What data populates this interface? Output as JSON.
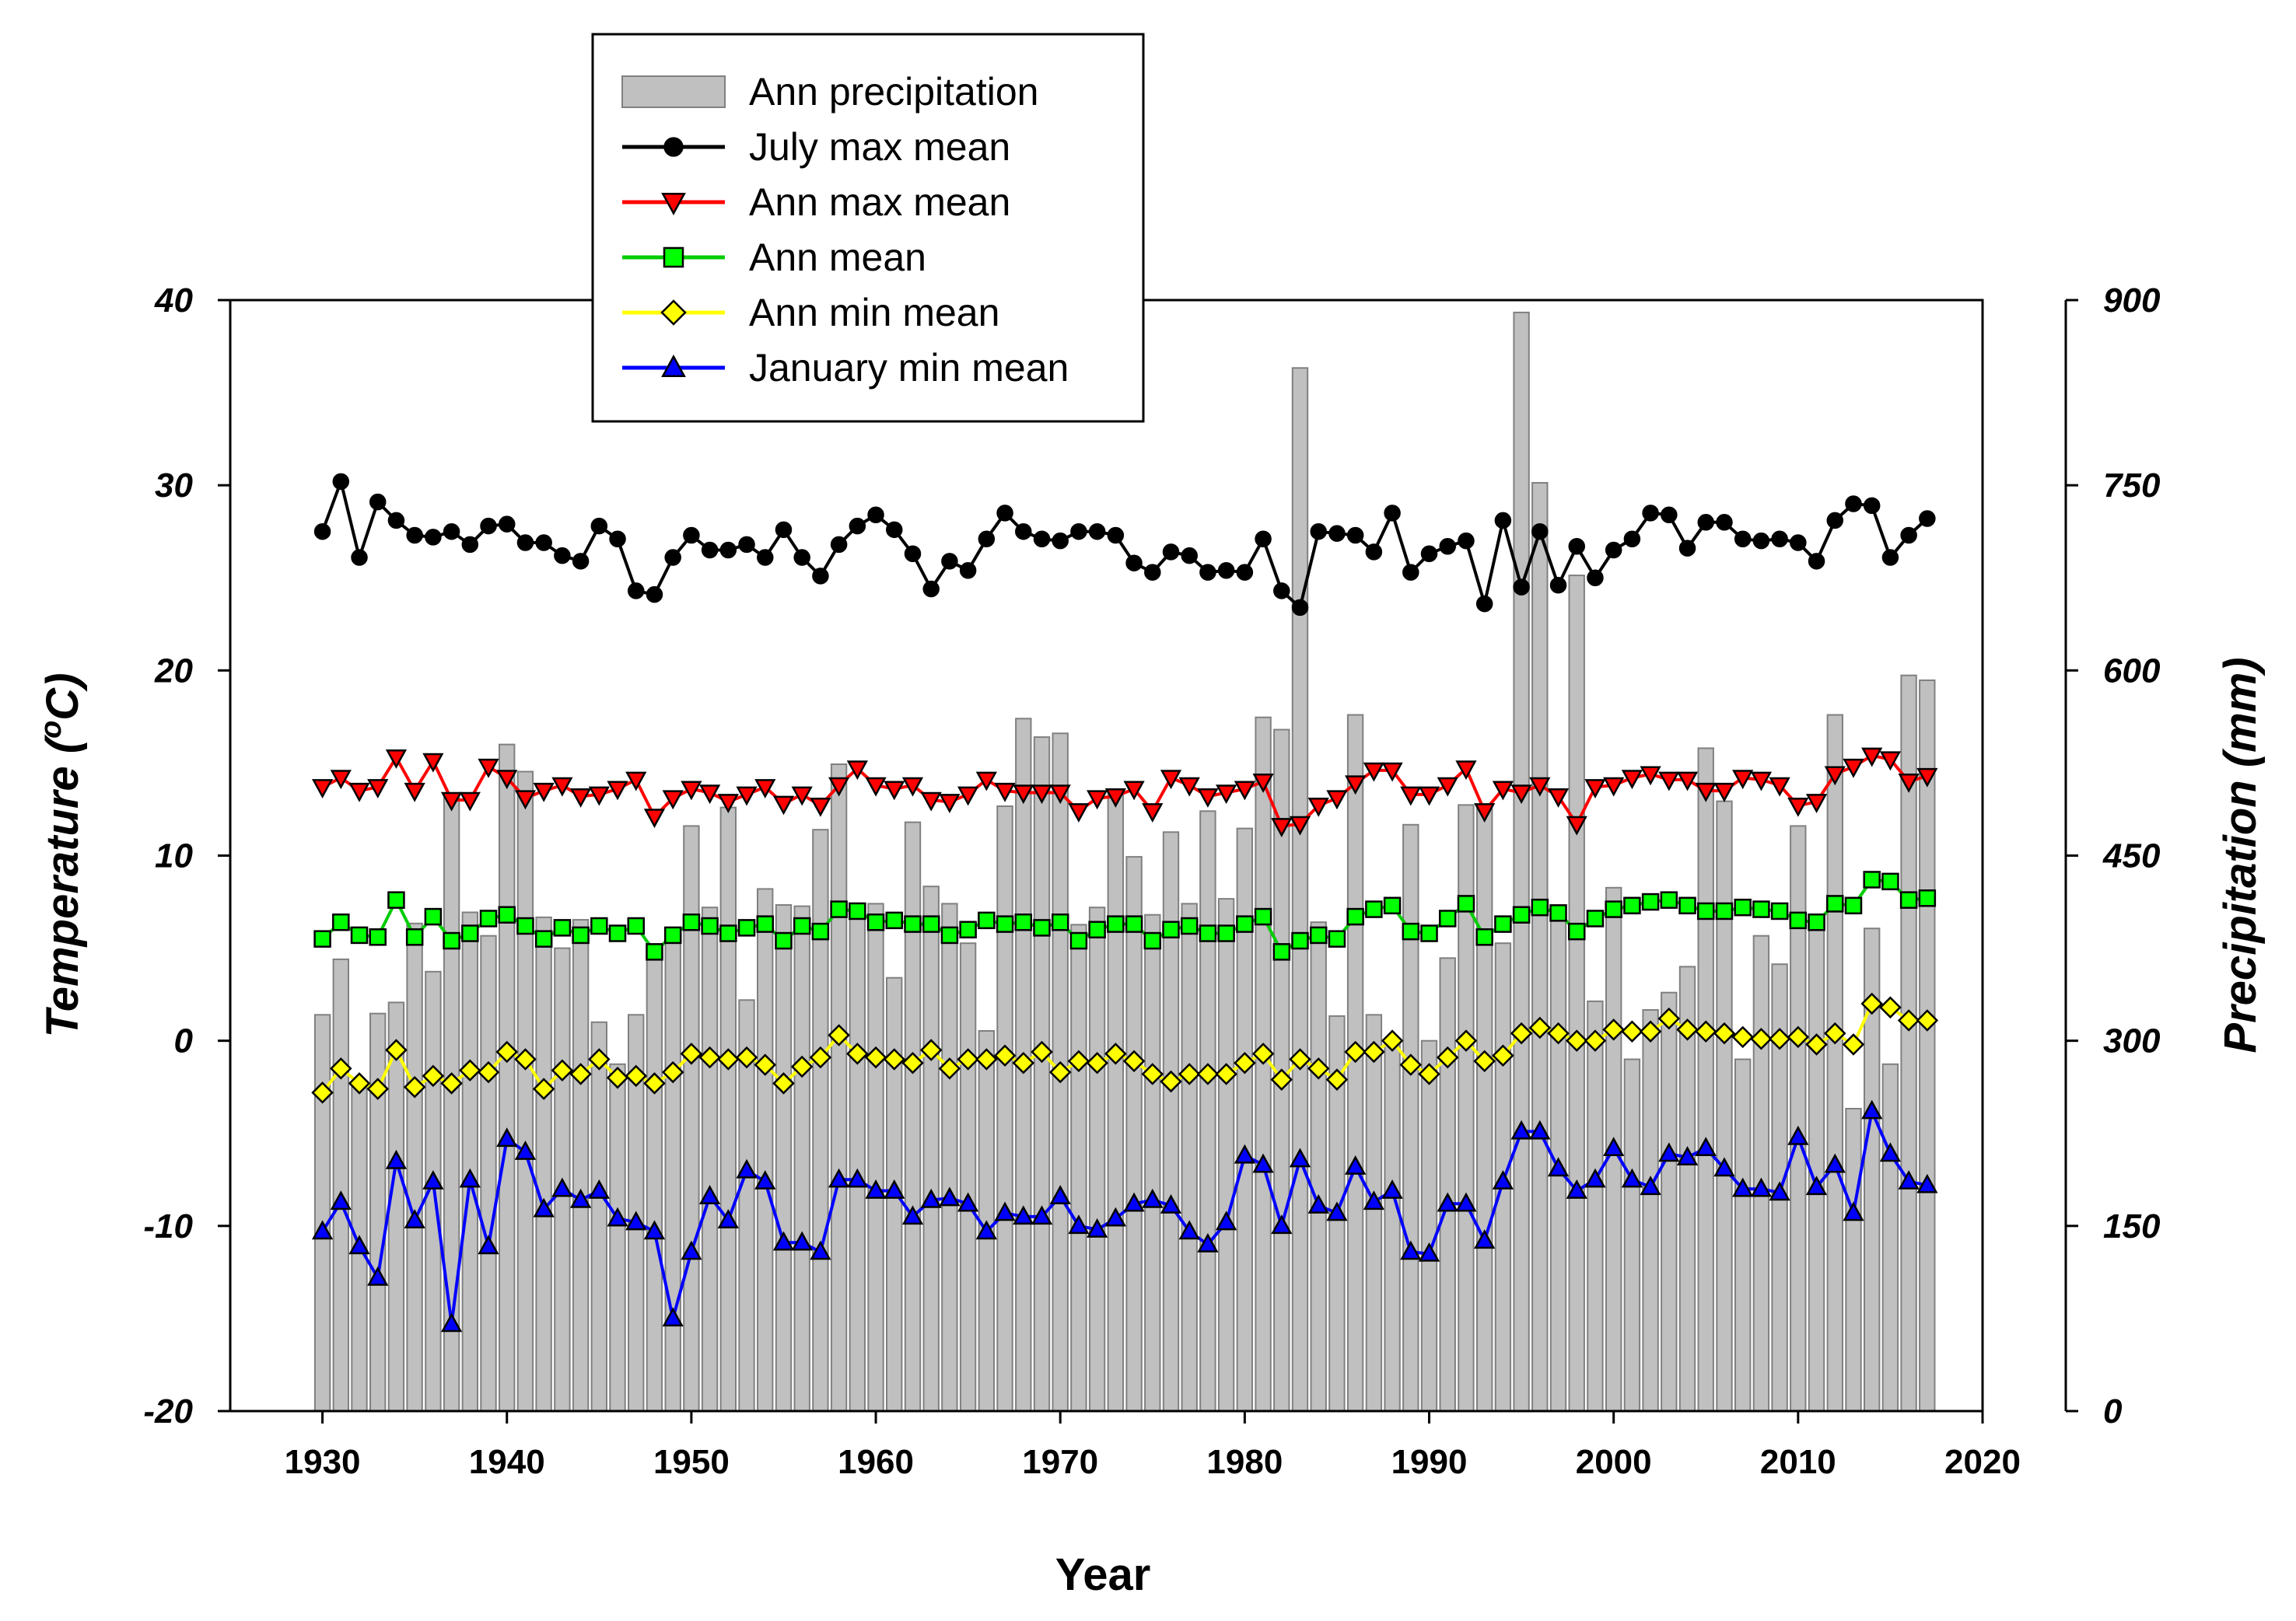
{
  "chart_data": {
    "type": "bar+line",
    "xlabel": "Year",
    "ylabel_left": "Temperature (",
    "ylabel_left_sup": "o",
    "ylabel_left_end": "C)",
    "ylabel_right": "Precipitation (mm)",
    "xlim": [
      1925,
      2020
    ],
    "ylim_left": [
      -20,
      40
    ],
    "ylim_right": [
      0,
      900
    ],
    "x_ticks": [
      1930,
      1940,
      1950,
      1960,
      1970,
      1980,
      1990,
      2000,
      2010,
      2020
    ],
    "y_ticks_left": [
      -20,
      -10,
      0,
      10,
      20,
      30,
      40
    ],
    "y_ticks_right": [
      0,
      150,
      300,
      450,
      600,
      750,
      900
    ],
    "years": [
      1930,
      1931,
      1932,
      1933,
      1934,
      1935,
      1936,
      1937,
      1938,
      1939,
      1940,
      1941,
      1942,
      1943,
      1944,
      1945,
      1946,
      1947,
      1948,
      1949,
      1950,
      1951,
      1952,
      1953,
      1954,
      1955,
      1956,
      1957,
      1958,
      1959,
      1960,
      1961,
      1962,
      1963,
      1964,
      1965,
      1966,
      1967,
      1968,
      1969,
      1970,
      1971,
      1972,
      1973,
      1974,
      1975,
      1976,
      1977,
      1978,
      1979,
      1980,
      1981,
      1982,
      1983,
      1984,
      1985,
      1986,
      1987,
      1988,
      1989,
      1990,
      1991,
      1992,
      1993,
      1994,
      1995,
      1996,
      1997,
      1998,
      1999,
      2000,
      2001,
      2002,
      2003,
      2004,
      2005,
      2006,
      2007,
      2008,
      2009,
      2010,
      2011,
      2012,
      2013,
      2014,
      2015,
      2016,
      2017
    ],
    "legend": [
      {
        "label": "Ann precipitation",
        "kind": "bar",
        "color": "#c0c0c0"
      },
      {
        "label": "July max mean",
        "kind": "line",
        "marker": "circle",
        "color": "#000000",
        "fill": "#000000"
      },
      {
        "label": "Ann max mean",
        "kind": "line",
        "marker": "triangle-down",
        "color": "#ff0000",
        "fill": "#ff0000"
      },
      {
        "label": "Ann mean",
        "kind": "line",
        "marker": "square",
        "color": "#00cc00",
        "fill": "#00ff00"
      },
      {
        "label": "Ann min mean",
        "kind": "line",
        "marker": "diamond",
        "color": "#ffff00",
        "fill": "#ffff00"
      },
      {
        "label": "January min mean",
        "kind": "line",
        "marker": "triangle-up",
        "color": "#0000ff",
        "fill": "#0000ff"
      }
    ],
    "precipitation": [
      321,
      366,
      265,
      322,
      331,
      395,
      356,
      498,
      404,
      385,
      540,
      518,
      400,
      375,
      398,
      315,
      281,
      321,
      369,
      385,
      474,
      408,
      489,
      333,
      423,
      410,
      409,
      471,
      524,
      410,
      411,
      351,
      477,
      425,
      411,
      379,
      308,
      490,
      561,
      546,
      549,
      394,
      408,
      501,
      449,
      402,
      469,
      411,
      486,
      415,
      472,
      562,
      552,
      845,
      396,
      320,
      564,
      321,
      300,
      475,
      300,
      367,
      491,
      488,
      379,
      890,
      752,
      404,
      677,
      332,
      424,
      285,
      325,
      339,
      360,
      537,
      494,
      285,
      385,
      362,
      474,
      393,
      564,
      245,
      391,
      281,
      596,
      592
    ],
    "series": [
      {
        "name": "July max mean",
        "values": [
          27.5,
          30.2,
          26.1,
          29.1,
          28.1,
          27.3,
          27.2,
          27.5,
          26.8,
          27.8,
          27.9,
          26.9,
          26.9,
          26.2,
          25.9,
          27.8,
          27.1,
          24.3,
          24.1,
          26.1,
          27.3,
          26.5,
          26.5,
          26.8,
          26.1,
          27.6,
          26.1,
          25.1,
          26.8,
          27.8,
          28.4,
          27.6,
          26.3,
          24.4,
          25.9,
          25.4,
          27.1,
          28.5,
          27.5,
          27.1,
          27.0,
          27.5,
          27.5,
          27.3,
          25.8,
          25.3,
          26.4,
          26.2,
          25.3,
          25.4,
          25.3,
          27.1,
          24.3,
          23.4,
          27.5,
          27.4,
          27.3,
          26.4,
          28.5,
          25.3,
          26.3,
          26.7,
          27.0,
          23.6,
          28.1,
          24.5,
          27.5,
          24.6,
          26.7,
          25.0,
          26.5,
          27.1,
          28.5,
          28.4,
          26.6,
          28.0,
          28.0,
          27.1,
          27.0,
          27.1,
          26.9,
          25.9,
          28.1,
          29.0,
          28.9,
          26.1,
          27.3,
          28.2
        ]
      },
      {
        "name": "Ann max mean",
        "values": [
          13.7,
          14.2,
          13.5,
          13.7,
          15.3,
          13.5,
          15.1,
          13.0,
          13.0,
          14.8,
          14.2,
          13.1,
          13.5,
          13.8,
          13.2,
          13.3,
          13.6,
          14.1,
          12.1,
          13.1,
          13.6,
          13.4,
          12.9,
          13.3,
          13.7,
          12.8,
          13.3,
          12.7,
          13.8,
          14.7,
          13.8,
          13.6,
          13.8,
          13.0,
          12.9,
          13.3,
          14.1,
          13.5,
          13.4,
          13.4,
          13.4,
          12.4,
          13.1,
          13.2,
          13.6,
          12.4,
          14.2,
          13.8,
          13.2,
          13.4,
          13.6,
          14.0,
          11.6,
          11.7,
          12.7,
          13.1,
          13.9,
          14.6,
          14.6,
          13.3,
          13.3,
          13.8,
          14.7,
          12.4,
          13.6,
          13.4,
          13.8,
          13.2,
          11.7,
          13.7,
          13.8,
          14.2,
          14.4,
          14.1,
          14.1,
          13.5,
          13.5,
          14.2,
          14.1,
          13.8,
          12.7,
          12.9,
          14.4,
          14.8,
          15.4,
          15.2,
          14.0,
          14.3
        ]
      },
      {
        "name": "Ann mean",
        "values": [
          5.5,
          6.4,
          5.7,
          5.6,
          7.6,
          5.6,
          6.7,
          5.4,
          5.8,
          6.6,
          6.8,
          6.2,
          5.5,
          6.1,
          5.7,
          6.2,
          5.8,
          6.2,
          4.8,
          5.7,
          6.4,
          6.2,
          5.8,
          6.1,
          6.3,
          5.4,
          6.2,
          5.9,
          7.1,
          7.0,
          6.4,
          6.5,
          6.3,
          6.3,
          5.7,
          6.0,
          6.5,
          6.3,
          6.4,
          6.1,
          6.4,
          5.4,
          6.0,
          6.3,
          6.3,
          5.4,
          6.0,
          6.2,
          5.8,
          5.8,
          6.3,
          6.7,
          4.8,
          5.4,
          5.7,
          5.5,
          6.7,
          7.1,
          7.3,
          5.9,
          5.8,
          6.6,
          7.4,
          5.6,
          6.3,
          6.8,
          7.2,
          6.9,
          5.9,
          6.6,
          7.1,
          7.3,
          7.5,
          7.6,
          7.3,
          7.0,
          7.0,
          7.2,
          7.1,
          7.0,
          6.5,
          6.4,
          7.4,
          7.3,
          8.7,
          8.6,
          7.6,
          7.7
        ]
      },
      {
        "name": "Ann min mean",
        "values": [
          -2.8,
          -1.5,
          -2.3,
          -2.6,
          -0.5,
          -2.5,
          -1.9,
          -2.3,
          -1.6,
          -1.7,
          -0.6,
          -1.0,
          -2.6,
          -1.6,
          -1.8,
          -1.0,
          -2.0,
          -1.9,
          -2.3,
          -1.7,
          -0.7,
          -0.9,
          -1.0,
          -0.9,
          -1.3,
          -2.3,
          -1.4,
          -0.9,
          0.3,
          -0.7,
          -0.9,
          -1.0,
          -1.2,
          -0.5,
          -1.5,
          -1.0,
          -1.0,
          -0.8,
          -1.2,
          -0.6,
          -1.7,
          -1.1,
          -1.2,
          -0.7,
          -1.1,
          -1.8,
          -2.2,
          -1.8,
          -1.8,
          -1.8,
          -1.2,
          -0.7,
          -2.1,
          -1.0,
          -1.5,
          -2.1,
          -0.6,
          -0.6,
          0.0,
          -1.3,
          -1.8,
          -0.9,
          0.0,
          -1.1,
          -0.8,
          0.4,
          0.7,
          0.4,
          0.0,
          0.0,
          0.6,
          0.5,
          0.5,
          1.2,
          0.6,
          0.5,
          0.4,
          0.2,
          0.1,
          0.1,
          0.2,
          -0.2,
          0.4,
          -0.2,
          2.0,
          1.8,
          1.1,
          1.1
        ]
      },
      {
        "name": "January min mean",
        "values": [
          -10.3,
          -8.7,
          -11.1,
          -12.8,
          -6.5,
          -9.7,
          -7.6,
          -15.3,
          -7.5,
          -11.1,
          -5.3,
          -6.0,
          -9.1,
          -8.0,
          -8.6,
          -8.1,
          -9.6,
          -9.8,
          -10.3,
          -15.0,
          -11.4,
          -8.4,
          -9.7,
          -7.0,
          -7.6,
          -10.9,
          -10.9,
          -11.4,
          -7.5,
          -7.5,
          -8.1,
          -8.1,
          -9.5,
          -8.6,
          -8.5,
          -8.8,
          -10.3,
          -9.3,
          -9.5,
          -9.5,
          -8.4,
          -10.0,
          -10.2,
          -9.6,
          -8.8,
          -8.6,
          -8.9,
          -10.3,
          -11.0,
          -9.8,
          -6.2,
          -6.7,
          -10.0,
          -6.4,
          -8.9,
          -9.3,
          -6.8,
          -8.7,
          -8.1,
          -11.4,
          -11.5,
          -8.8,
          -8.8,
          -10.8,
          -7.6,
          -4.9,
          -4.9,
          -6.9,
          -8.1,
          -7.5,
          -5.8,
          -7.5,
          -7.9,
          -6.1,
          -6.3,
          -5.8,
          -6.9,
          -8.0,
          -8.0,
          -8.2,
          -5.2,
          -7.9,
          -6.7,
          -9.3,
          -3.8,
          -6.1,
          -7.6,
          -7.8
        ]
      }
    ]
  }
}
